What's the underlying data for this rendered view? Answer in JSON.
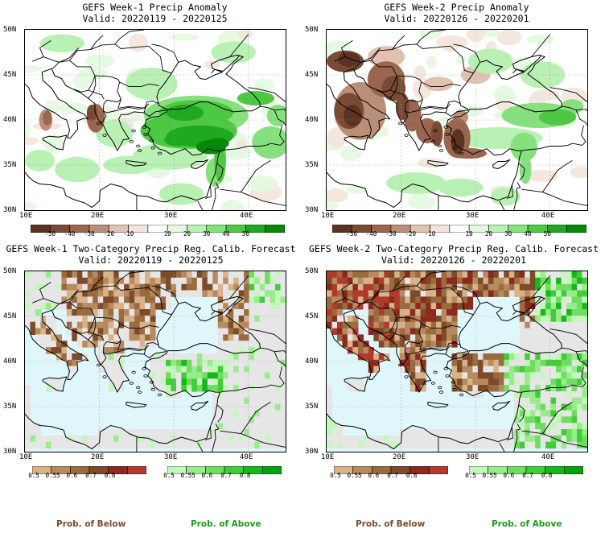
{
  "panels": [
    {
      "title1": "GEFS Week-1 Precip Anomaly",
      "title2": "Valid: 20220119 - 20220125",
      "type": "anomaly",
      "variant": "w1a"
    },
    {
      "title1": "GEFS Week-2 Precip Anomaly",
      "title2": "Valid: 20220126 - 20220201",
      "type": "anomaly",
      "variant": "w2a"
    },
    {
      "title1": "GEFS Week-1 Two-Category Precip Reg. Calib. Forecast",
      "title2": "Valid: 20220119 - 20220125",
      "type": "prob",
      "variant": "w1p"
    },
    {
      "title1": "GEFS Week-2 Two-Category Precip Reg. Calib. Forecast",
      "title2": "Valid: 20220126 - 20220201",
      "type": "prob",
      "variant": "w2p"
    }
  ],
  "lat_ticks": [
    "50N",
    "45N",
    "40N",
    "35N",
    "30N"
  ],
  "lon_ticks": [
    "10E",
    "20E",
    "30E",
    "40E"
  ],
  "anomaly_colorbar": {
    "labels": [
      "-50",
      "-40",
      "-30",
      "-20",
      "-10",
      "10",
      "20",
      "30",
      "40",
      "50"
    ],
    "colors": [
      "#5a3322",
      "#7a4a35",
      "#9a6650",
      "#bb8e78",
      "#e1c2b0",
      "#f3e4da",
      "#ffffff",
      "#e3f8df",
      "#b9f0b3",
      "#86e07e",
      "#4ec843",
      "#1fa920",
      "#07880a"
    ]
  },
  "prob_below_colorbar": {
    "labels": [
      "0.5",
      "0.55",
      "0.6",
      "0.7",
      "0.8"
    ],
    "colors": [
      "#d8b38a",
      "#b88a5f",
      "#9b6b40",
      "#7d4a2a",
      "#8a2a1e",
      "#b03a2c"
    ]
  },
  "prob_above_colorbar": {
    "labels": [
      "0.5",
      "0.55",
      "0.6",
      "0.7",
      "0.8"
    ],
    "colors": [
      "#c4f7bb",
      "#98ec8b",
      "#6fdd5f",
      "#3fce36",
      "#15b81a",
      "#06a00c"
    ]
  },
  "footer": {
    "below": "Prob. of Below",
    "above": "Prob. of Above"
  },
  "colors": {
    "below_text": "#7a4a2a",
    "above_text": "#1a9e1a",
    "sea": "#dff7fb",
    "land_gray": "#e6e6e6"
  }
}
